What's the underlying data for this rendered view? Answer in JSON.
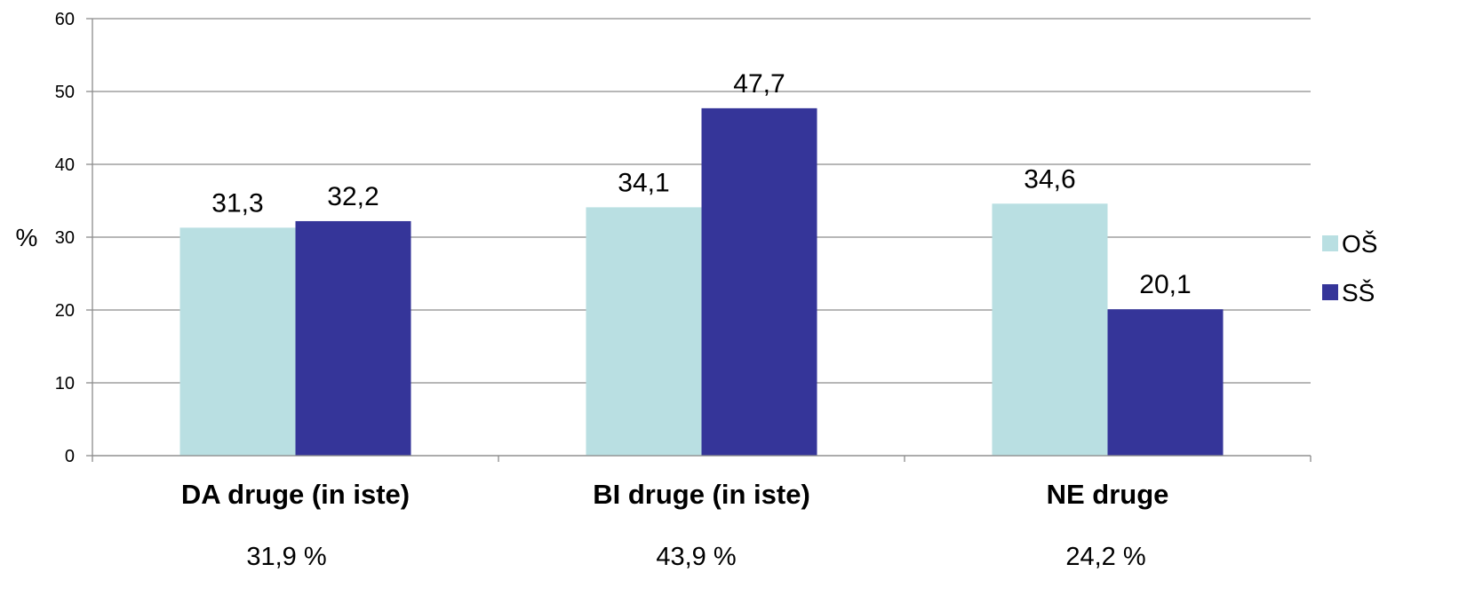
{
  "chart_data": {
    "type": "bar",
    "title": "",
    "xlabel": "",
    "ylabel": "%",
    "ylim": [
      0,
      60
    ],
    "yticks": [
      0,
      10,
      20,
      30,
      40,
      50,
      60
    ],
    "grid": true,
    "legend_position": "right",
    "categories": [
      "DA druge (in iste)",
      "BI druge (in iste)",
      "NE druge"
    ],
    "series": [
      {
        "name": "OŠ",
        "color": "#b9dfe2",
        "values": [
          31.3,
          34.1,
          34.6
        ],
        "labels": [
          "31,3",
          "34,1",
          "34,6"
        ]
      },
      {
        "name": "SŠ",
        "color": "#353599",
        "values": [
          32.2,
          47.7,
          20.1
        ],
        "labels": [
          "32,2",
          "47,7",
          "20,1"
        ]
      }
    ],
    "category_totals": [
      "31,9 %",
      "43,9 %",
      "24,2 %"
    ]
  }
}
